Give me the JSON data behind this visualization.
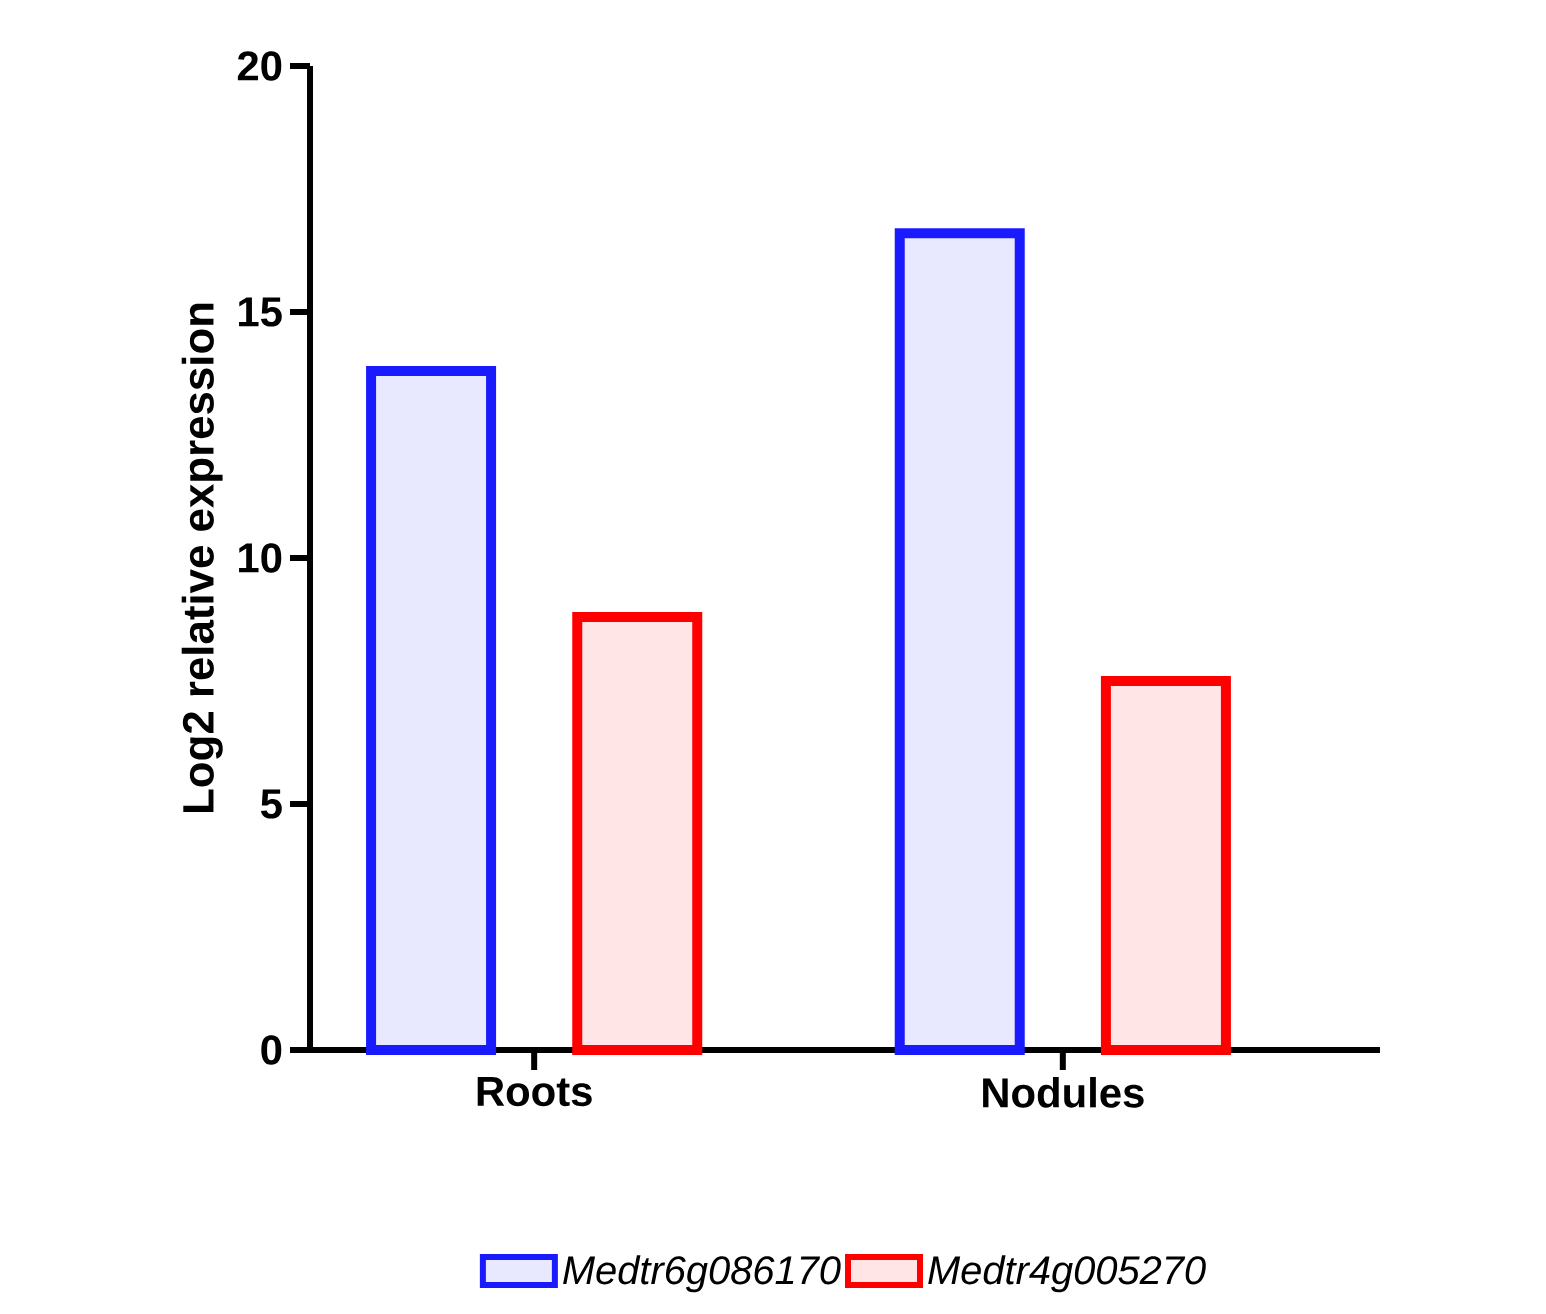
{
  "chart_data": {
    "type": "bar",
    "ylabel": "Log2 relative expression",
    "categories": [
      "Roots",
      "Nodules"
    ],
    "series": [
      {
        "name": "Medtr6g086170",
        "color": "#1a1aff",
        "values": [
          13.8,
          16.6
        ]
      },
      {
        "name": "Medtr4g005270",
        "color": "#ff0000",
        "values": [
          8.8,
          7.5
        ]
      }
    ],
    "ylim": [
      0,
      20
    ],
    "yticks": [
      0,
      5,
      10,
      15,
      20
    ],
    "legend": "bottom",
    "grid": false
  }
}
